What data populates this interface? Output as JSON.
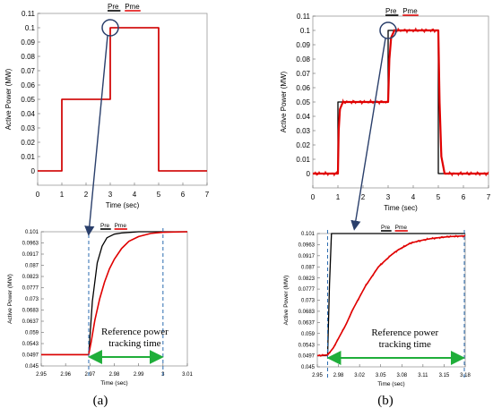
{
  "colors": {
    "pre": "#000000",
    "pme": "#e00000",
    "guide": "#2b6cb0",
    "arrow": "#1fae3a",
    "pointer": "#2a3f6b",
    "box": "#999999"
  },
  "chart_data": [
    {
      "id": "a-main",
      "type": "line",
      "xlabel": "Time (sec)",
      "ylabel": "Active Power (MW)",
      "xlim": [
        0,
        7
      ],
      "ylim": [
        -0.01,
        0.11
      ],
      "xticks": [
        "0",
        "1",
        "2",
        "3",
        "4",
        "5",
        "6",
        "7"
      ],
      "yticks": [
        "0",
        "0.01",
        "0.02",
        "0.03",
        "0.04",
        "0.05",
        "0.06",
        "0.07",
        "0.08",
        "0.09",
        "0.1",
        "0.11"
      ],
      "legend": [
        "Pre",
        "Pme"
      ],
      "series": [
        {
          "name": "Pre",
          "x": [
            0,
            1,
            1,
            3,
            3,
            5,
            5,
            7
          ],
          "y": [
            0,
            0,
            0.05,
            0.05,
            0.1,
            0.1,
            0,
            0
          ]
        },
        {
          "name": "Pme",
          "x": [
            0,
            1,
            1,
            3,
            3,
            5,
            5,
            7
          ],
          "y": [
            0,
            0,
            0.05,
            0.05,
            0.1,
            0.1,
            0,
            0
          ]
        }
      ]
    },
    {
      "id": "a-zoom",
      "type": "line",
      "xlabel": "Time (sec)",
      "ylabel": "Active Power (MW)",
      "xlim": [
        2.95,
        3.01
      ],
      "ylim": [
        0.045,
        0.101
      ],
      "xticks": [
        "2.95",
        "2.96",
        "2.97",
        "2.98",
        "2.99",
        "3",
        "3.01"
      ],
      "yticks": [
        "0.045",
        "0.0497",
        "0.0543",
        "0.059",
        "0.0637",
        "0.0683",
        "0.073",
        "0.0777",
        "0.0823",
        "0.087",
        "0.0917",
        "0.0963",
        "0.101"
      ],
      "legend": [
        "Pre",
        "Pme"
      ],
      "annotation": [
        "Reference power",
        "tracking time"
      ],
      "series": [
        {
          "name": "Pre",
          "x": [
            2.95,
            2.9695,
            2.971,
            2.973,
            2.975,
            2.977,
            2.98,
            2.983,
            2.987,
            2.99,
            3.01
          ],
          "y": [
            0.0497,
            0.0497,
            0.072,
            0.088,
            0.095,
            0.0985,
            0.1,
            0.1005,
            0.1008,
            0.101,
            0.101
          ]
        },
        {
          "name": "Pme",
          "x": [
            2.95,
            2.9695,
            2.9705,
            2.972,
            2.974,
            2.976,
            2.978,
            2.98,
            2.983,
            2.986,
            2.99,
            2.995,
            3.0,
            3.01
          ],
          "y": [
            0.0497,
            0.0497,
            0.055,
            0.064,
            0.073,
            0.08,
            0.0855,
            0.0895,
            0.094,
            0.097,
            0.099,
            0.1003,
            0.1008,
            0.101
          ]
        }
      ]
    },
    {
      "id": "b-main",
      "type": "line",
      "xlabel": "Time (sec)",
      "ylabel": "Active Power (MW)",
      "xlim": [
        0,
        7
      ],
      "ylim": [
        -0.01,
        0.11
      ],
      "xticks": [
        "0",
        "1",
        "2",
        "3",
        "4",
        "5",
        "6",
        "7"
      ],
      "yticks": [
        "0",
        "0.01",
        "0.02",
        "0.03",
        "0.04",
        "0.05",
        "0.06",
        "0.07",
        "0.08",
        "0.09",
        "0.1",
        "0.11"
      ],
      "legend": [
        "Pre",
        "Pme"
      ],
      "series": [
        {
          "name": "Pre",
          "x": [
            0,
            1,
            1,
            3,
            3,
            5,
            5,
            7
          ],
          "y": [
            0,
            0,
            0.05,
            0.05,
            0.1,
            0.1,
            0,
            0
          ]
        },
        {
          "name": "Pme",
          "x": [
            0,
            1,
            1.03,
            1.08,
            1.2,
            3,
            3.05,
            3.12,
            3.25,
            5,
            5.05,
            5.12,
            5.25,
            7
          ],
          "y": [
            0,
            0,
            0.03,
            0.045,
            0.05,
            0.05,
            0.08,
            0.095,
            0.1,
            0.1,
            0.05,
            0.012,
            0,
            0
          ]
        }
      ]
    },
    {
      "id": "b-zoom",
      "type": "line",
      "xlabel": "Time (sec)",
      "ylabel": "Active Power (MW)",
      "xlim": [
        2.95,
        3.18
      ],
      "ylim": [
        0.045,
        0.101
      ],
      "xticks": [
        "2.95",
        "2.98",
        "3.02",
        "3.05",
        "3.08",
        "3.11",
        "3.15",
        "3.18"
      ],
      "yticks": [
        "0.045",
        "0.0497",
        "0.0543",
        "0.059",
        "0.0637",
        "0.0683",
        "0.073",
        "0.0777",
        "0.0823",
        "0.087",
        "0.0917",
        "0.0963",
        "0.101"
      ],
      "legend": [
        "Pre",
        "Pme"
      ],
      "annotation": [
        "Reference power",
        "tracking time"
      ],
      "series": [
        {
          "name": "Pre",
          "x": [
            2.95,
            2.966,
            2.969,
            2.972,
            3.18
          ],
          "y": [
            0.0497,
            0.0497,
            0.08,
            0.101,
            0.101
          ]
        },
        {
          "name": "Pme",
          "x": [
            2.95,
            2.966,
            2.975,
            2.985,
            2.995,
            3.005,
            3.015,
            3.025,
            3.035,
            3.045,
            3.055,
            3.065,
            3.075,
            3.085,
            3.095,
            3.11,
            3.125,
            3.14,
            3.155,
            3.17,
            3.18
          ],
          "y": [
            0.0497,
            0.05,
            0.053,
            0.058,
            0.063,
            0.069,
            0.074,
            0.079,
            0.083,
            0.087,
            0.0895,
            0.092,
            0.094,
            0.0955,
            0.097,
            0.098,
            0.0988,
            0.0993,
            0.0997,
            0.0999,
            0.1
          ]
        }
      ]
    }
  ],
  "captions": [
    "(a)",
    "(b)"
  ]
}
